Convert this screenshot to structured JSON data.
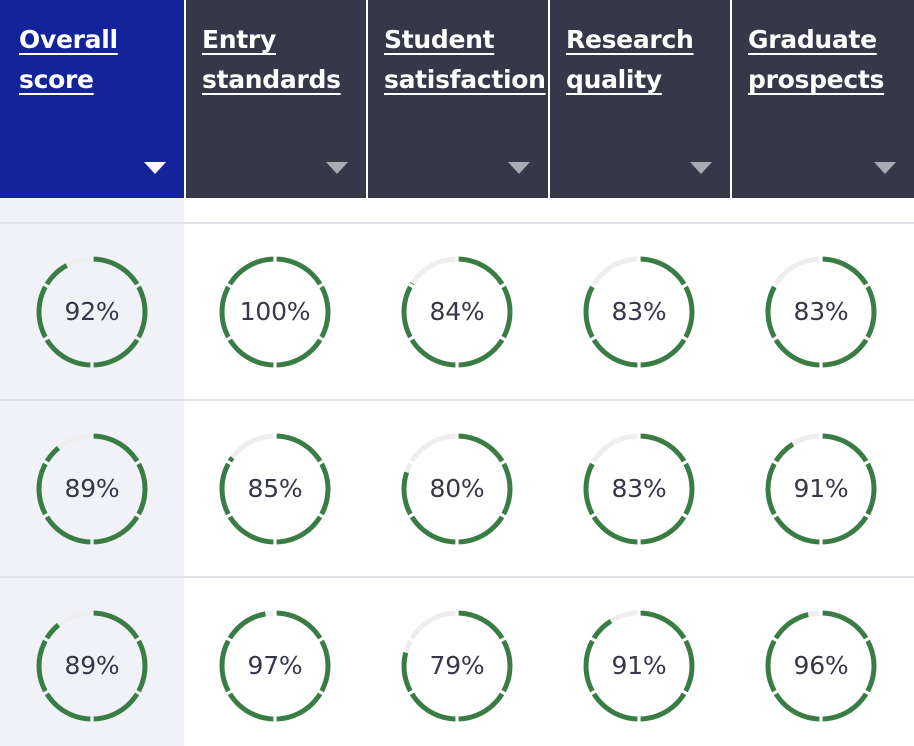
{
  "colors": {
    "header_active": "#13249b",
    "header": "#363849",
    "gauge_fill": "#3a7d44",
    "gauge_track": "#eeeeee",
    "first_column": "#f0f2f8"
  },
  "columns": [
    {
      "label_line1": "Overall",
      "label_line2": "score",
      "sort_icon": "caret-down-icon"
    },
    {
      "label_line1": "Entry",
      "label_line2": "standards",
      "sort_icon": "caret-down-icon"
    },
    {
      "label_line1": "Student",
      "label_line2": "satisfaction",
      "sort_icon": "caret-down-icon"
    },
    {
      "label_line1": "Research",
      "label_line2": "quality",
      "sort_icon": "caret-down-icon"
    },
    {
      "label_line1": "Graduate",
      "label_line2": "prospects",
      "sort_icon": "caret-down-icon"
    }
  ],
  "rows": [
    {
      "values": [
        92,
        100,
        84,
        83,
        83
      ],
      "labels": [
        "92%",
        "100%",
        "84%",
        "83%",
        "83%"
      ]
    },
    {
      "values": [
        89,
        85,
        80,
        83,
        91
      ],
      "labels": [
        "89%",
        "85%",
        "80%",
        "83%",
        "91%"
      ]
    },
    {
      "values": [
        89,
        97,
        79,
        91,
        96
      ],
      "labels": [
        "89%",
        "97%",
        "79%",
        "91%",
        "96%"
      ]
    }
  ]
}
